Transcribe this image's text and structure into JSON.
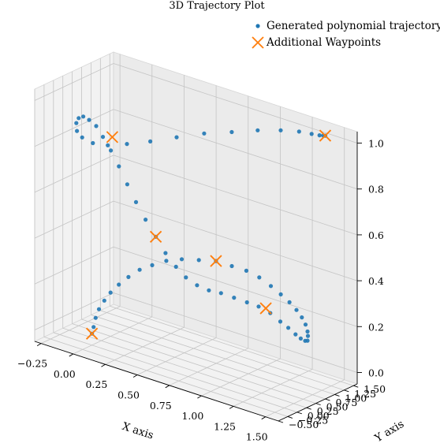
{
  "chart_data": {
    "type": "scatter",
    "title": "3D Trajectory Plot",
    "xlabel": "X axis",
    "ylabel": "Y axis",
    "zlabel": "",
    "xlim": [
      -0.3,
      1.6
    ],
    "ylim": [
      -0.5,
      1.6
    ],
    "zlim": [
      -0.05,
      1.05
    ],
    "x_ticks": [
      "−0.25",
      "0.00",
      "0.25",
      "0.50",
      "0.75",
      "1.00",
      "1.25",
      "1.50"
    ],
    "y_ticks": [
      "−0.50",
      "−0.25",
      "0.00",
      "0.25",
      "0.50",
      "0.75",
      "1.00",
      "1.25",
      "1.50"
    ],
    "z_ticks": [
      "0.0",
      "0.2",
      "0.4",
      "0.6",
      "0.8",
      "1.0"
    ],
    "grid": true,
    "legend_position": "top-right",
    "series": [
      {
        "name": "Generated polynomial trajectory",
        "color": "#1f77b4",
        "marker": "dot",
        "points": [
          [
            0.0,
            0.0,
            0.0
          ],
          [
            0.01,
            0.01,
            0.03
          ],
          [
            0.02,
            0.03,
            0.07
          ],
          [
            0.04,
            0.05,
            0.11
          ],
          [
            0.07,
            0.09,
            0.15
          ],
          [
            0.11,
            0.12,
            0.19
          ],
          [
            0.16,
            0.17,
            0.23
          ],
          [
            0.22,
            0.22,
            0.27
          ],
          [
            0.29,
            0.28,
            0.31
          ],
          [
            0.37,
            0.34,
            0.34
          ],
          [
            0.46,
            0.41,
            0.37
          ],
          [
            0.56,
            0.48,
            0.39
          ],
          [
            0.67,
            0.56,
            0.4
          ],
          [
            0.78,
            0.64,
            0.41
          ],
          [
            0.88,
            0.72,
            0.4
          ],
          [
            0.97,
            0.8,
            0.39
          ],
          [
            1.05,
            0.87,
            0.37
          ],
          [
            1.12,
            0.94,
            0.34
          ],
          [
            1.18,
            1.0,
            0.31
          ],
          [
            1.23,
            1.06,
            0.28
          ],
          [
            1.27,
            1.11,
            0.25
          ],
          [
            1.3,
            1.15,
            0.22
          ],
          [
            1.32,
            1.18,
            0.19
          ],
          [
            1.33,
            1.2,
            0.16
          ],
          [
            1.33,
            1.21,
            0.14
          ],
          [
            1.33,
            1.2,
            0.12
          ],
          [
            1.32,
            1.17,
            0.12
          ],
          [
            1.3,
            1.12,
            0.13
          ],
          [
            1.28,
            1.05,
            0.15
          ],
          [
            1.25,
            0.96,
            0.18
          ],
          [
            1.22,
            0.85,
            0.21
          ],
          [
            1.18,
            0.72,
            0.25
          ],
          [
            1.13,
            0.58,
            0.28
          ],
          [
            1.08,
            0.44,
            0.3
          ],
          [
            1.02,
            0.3,
            0.32
          ],
          [
            0.96,
            0.16,
            0.34
          ],
          [
            0.9,
            0.04,
            0.35
          ],
          [
            0.84,
            -0.07,
            0.37
          ],
          [
            0.78,
            -0.16,
            0.4
          ],
          [
            0.72,
            -0.22,
            0.44
          ],
          [
            0.65,
            -0.26,
            0.49
          ],
          [
            0.58,
            -0.28,
            0.55
          ],
          [
            0.5,
            -0.28,
            0.61
          ],
          [
            0.42,
            -0.26,
            0.67
          ],
          [
            0.34,
            -0.22,
            0.73
          ],
          [
            0.26,
            -0.17,
            0.79
          ],
          [
            0.18,
            -0.11,
            0.84
          ],
          [
            0.1,
            -0.05,
            0.88
          ],
          [
            0.03,
            0.01,
            0.91
          ],
          [
            -0.04,
            0.06,
            0.92
          ],
          [
            -0.1,
            0.11,
            0.92
          ],
          [
            -0.15,
            0.16,
            0.9
          ],
          [
            -0.18,
            0.2,
            0.87
          ],
          [
            -0.19,
            0.25,
            0.83
          ],
          [
            -0.17,
            0.32,
            0.8
          ],
          [
            -0.11,
            0.4,
            0.78
          ],
          [
            -0.02,
            0.49,
            0.78
          ],
          [
            0.1,
            0.59,
            0.8
          ],
          [
            0.25,
            0.7,
            0.83
          ],
          [
            0.42,
            0.82,
            0.87
          ],
          [
            0.6,
            0.94,
            0.91
          ],
          [
            0.78,
            1.06,
            0.94
          ],
          [
            0.95,
            1.17,
            0.97
          ],
          [
            1.1,
            1.27,
            0.99
          ],
          [
            1.22,
            1.35,
            1.0
          ],
          [
            1.3,
            1.41,
            1.0
          ],
          [
            1.35,
            1.45,
            1.0
          ],
          [
            1.37,
            1.48,
            1.0
          ],
          [
            1.38,
            1.5,
            1.0
          ]
        ]
      },
      {
        "name": "Additional Waypoints",
        "color": "#ff7f0e",
        "marker": "x",
        "points": [
          [
            0.0,
            0.0,
            0.0
          ],
          [
            0.78,
            0.64,
            0.41
          ],
          [
            1.18,
            0.6,
            0.28
          ],
          [
            0.58,
            -0.28,
            0.55
          ],
          [
            0.1,
            0.2,
            0.86
          ],
          [
            1.38,
            1.5,
            1.0
          ]
        ]
      }
    ]
  }
}
